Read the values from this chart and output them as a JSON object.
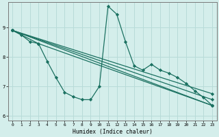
{
  "xlabel": "Humidex (Indice chaleur)",
  "xlim": [
    -0.5,
    23.5
  ],
  "ylim": [
    5.85,
    9.85
  ],
  "yticks": [
    6,
    7,
    8,
    9
  ],
  "xticks": [
    0,
    1,
    2,
    3,
    4,
    5,
    6,
    7,
    8,
    9,
    10,
    11,
    12,
    13,
    14,
    15,
    16,
    17,
    18,
    19,
    20,
    21,
    22,
    23
  ],
  "bg_color": "#d4eeeb",
  "grid_color": "#b8dbd8",
  "line_color": "#1a7060",
  "lines": [
    {
      "x": [
        0,
        1,
        2,
        3,
        23
      ],
      "y": [
        8.9,
        8.75,
        8.52,
        8.45,
        6.35
      ]
    },
    {
      "x": [
        0,
        3,
        23
      ],
      "y": [
        8.9,
        8.45,
        6.35
      ]
    },
    {
      "x": [
        0,
        3,
        23
      ],
      "y": [
        8.9,
        8.45,
        6.35
      ]
    },
    {
      "x": [
        0,
        3,
        4,
        5,
        6,
        7,
        8,
        9,
        10,
        11,
        12,
        13,
        14,
        15,
        16,
        17,
        18,
        19,
        20,
        21,
        22,
        23
      ],
      "y": [
        8.9,
        8.45,
        7.85,
        7.3,
        6.8,
        6.65,
        6.55,
        6.55,
        7.0,
        9.72,
        9.45,
        8.52,
        7.7,
        7.55,
        7.75,
        7.55,
        7.45,
        7.3,
        7.1,
        6.85,
        6.62,
        6.35
      ]
    }
  ],
  "straight_lines": [
    {
      "x": [
        0,
        23
      ],
      "y": [
        8.9,
        6.35
      ]
    },
    {
      "x": [
        0,
        23
      ],
      "y": [
        8.9,
        6.55
      ]
    },
    {
      "x": [
        0,
        23
      ],
      "y": [
        8.9,
        6.75
      ]
    }
  ]
}
